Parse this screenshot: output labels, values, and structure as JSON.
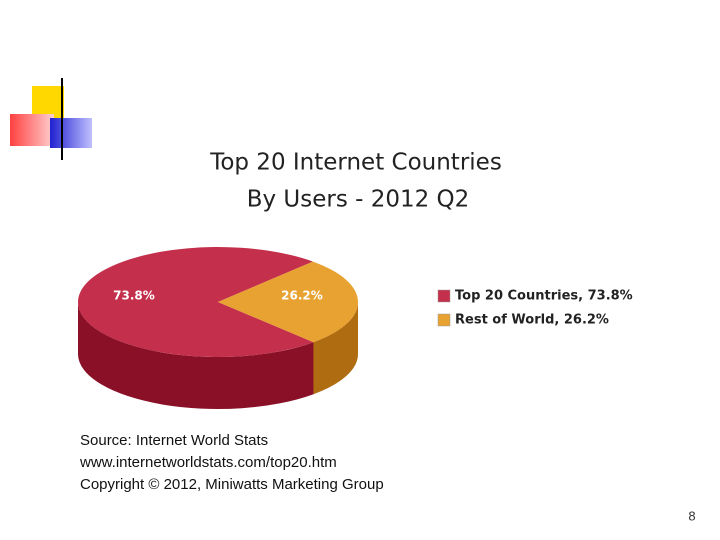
{
  "chart_data": {
    "type": "pie",
    "title": "Top 20 Internet Countries",
    "subtitle": "By Users - 2012 Q2",
    "categories": [
      "Top 20 Countries, 73.8%",
      "Rest of World, 26.2%"
    ],
    "values": [
      73.8,
      26.2
    ],
    "value_labels": [
      "73.8%",
      "26.2%"
    ],
    "colors": [
      "#c4304c",
      "#e8a232"
    ],
    "side_colors": [
      "#8a1028",
      "#b06c10"
    ],
    "legend": "right"
  },
  "source": [
    "Source: Internet World Stats",
    "www.internetworldstats.com/top20.htm",
    "Copyright © 2012,  Miniwatts Marketing Group"
  ],
  "page_number": "8"
}
